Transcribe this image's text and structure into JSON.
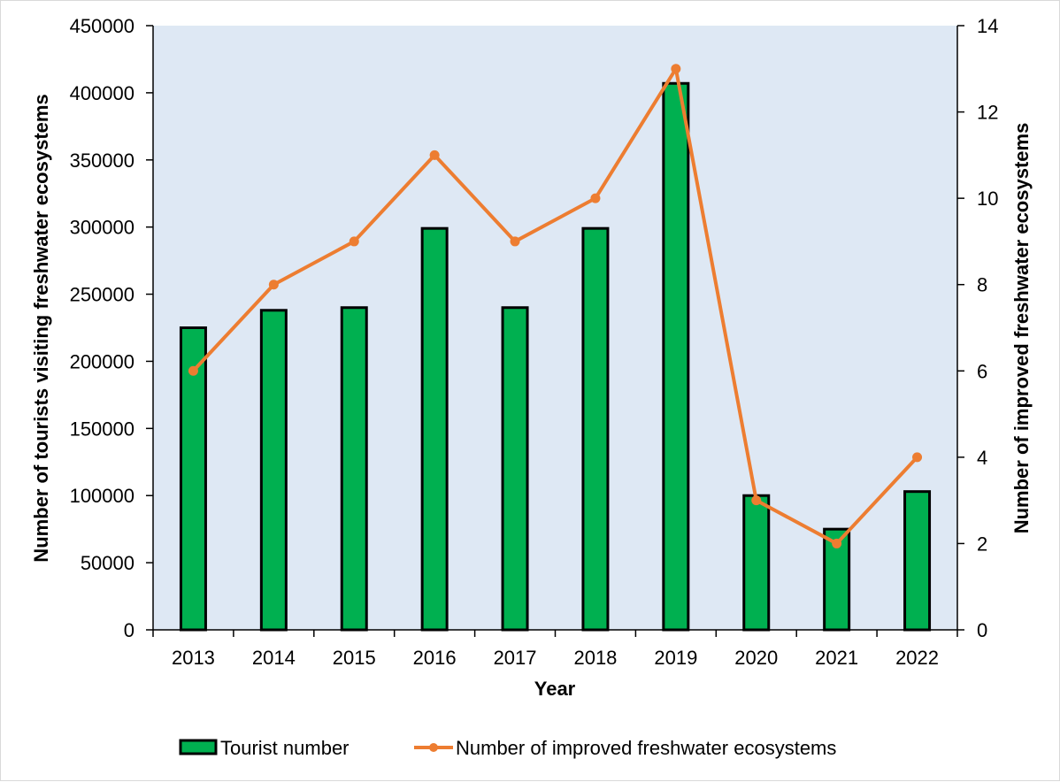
{
  "chart_data": {
    "type": "bar",
    "title": "",
    "xlabel": "Year",
    "ylabel": "Number of tourists visiting freshwater ecosystems",
    "y2label": "Number of improved freshwater ecosystems",
    "categories": [
      "2013",
      "2014",
      "2015",
      "2016",
      "2017",
      "2018",
      "2019",
      "2020",
      "2021",
      "2022"
    ],
    "ylim": [
      0,
      450000
    ],
    "y2lim": [
      0,
      14
    ],
    "yticks": [
      "0",
      "50000",
      "100000",
      "150000",
      "200000",
      "250000",
      "300000",
      "350000",
      "400000",
      "450000"
    ],
    "y2ticks": [
      "0",
      "2",
      "4",
      "6",
      "8",
      "10",
      "12",
      "14"
    ],
    "grid": false,
    "legend_position": "bottom",
    "series": [
      {
        "name": "Tourist number",
        "type": "bar",
        "axis": "left",
        "color": "#00b050",
        "values": [
          225000,
          238000,
          240000,
          299000,
          240000,
          299000,
          407000,
          100000,
          75000,
          103000
        ]
      },
      {
        "name": "Number of improved freshwater ecosystems",
        "type": "line",
        "axis": "right",
        "color": "#ed7d31",
        "values": [
          6,
          8,
          9,
          11,
          9,
          10,
          13,
          3,
          2,
          4
        ]
      }
    ],
    "plot_background": "#dee8f4"
  }
}
